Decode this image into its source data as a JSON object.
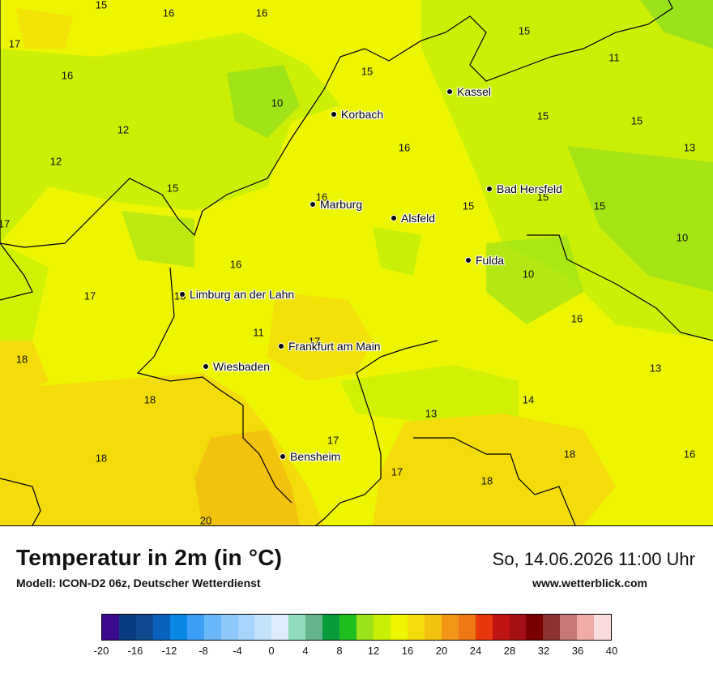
{
  "map": {
    "cities": [
      {
        "name": "Kassel"
      },
      {
        "name": "Korbach"
      },
      {
        "name": "Marburg"
      },
      {
        "name": "Bad Hersfeld"
      },
      {
        "name": "Alsfeld"
      },
      {
        "name": "Fulda"
      },
      {
        "name": "Limburg an der Lahn"
      },
      {
        "name": "Frankfurt am Main"
      },
      {
        "name": "Wiesbaden"
      },
      {
        "name": "Bensheim"
      }
    ],
    "values": [
      "15",
      "16",
      "16",
      "17",
      "16",
      "15",
      "15",
      "11",
      "10",
      "12",
      "15",
      "15",
      "16",
      "13",
      "12",
      "15",
      "16",
      "15",
      "15",
      "15",
      "17",
      "10",
      "16",
      "10",
      "17",
      "16",
      "16",
      "17",
      "11",
      "17",
      "16",
      "18",
      "13",
      "18",
      "14",
      "13",
      "17",
      "18",
      "18",
      "17",
      "18",
      "16",
      "20"
    ],
    "colors": {
      "cold_green": "#9be21a",
      "mid_green": "#c8ef05",
      "yellow": "#eef500",
      "warm_yellow": "#f3dc0a",
      "orange": "#f2c20e"
    }
  },
  "footer": {
    "title": "Temperatur in 2m (in °C)",
    "model": "Modell: ICON-D2 06z, Deutscher Wetterdienst",
    "datetime": "So, 14.06.2026 11:00 Uhr",
    "website": "www.wetterblick.com"
  },
  "legend": {
    "ticks": [
      "-20",
      "-16",
      "-12",
      "-8",
      "-4",
      "0",
      "4",
      "8",
      "12",
      "16",
      "20",
      "24",
      "28",
      "32",
      "36",
      "40"
    ],
    "colors": [
      "#3c0a8c",
      "#0a3c82",
      "#0f4a8f",
      "#0a64be",
      "#0a88e6",
      "#3c9ff5",
      "#6ab8fa",
      "#8ec8fa",
      "#a6d4fa",
      "#c4e2fc",
      "#dcecfc",
      "#90dcbc",
      "#64b48c",
      "#0a9c3c",
      "#1ebe1e",
      "#9be21a",
      "#c8ef05",
      "#eef500",
      "#f3dc0a",
      "#f2c20e",
      "#f2961a",
      "#ee7814",
      "#e6380a",
      "#be1414",
      "#a50f14",
      "#780000",
      "#8c3232",
      "#c87878",
      "#f0aaaa",
      "#fadcdc"
    ]
  }
}
